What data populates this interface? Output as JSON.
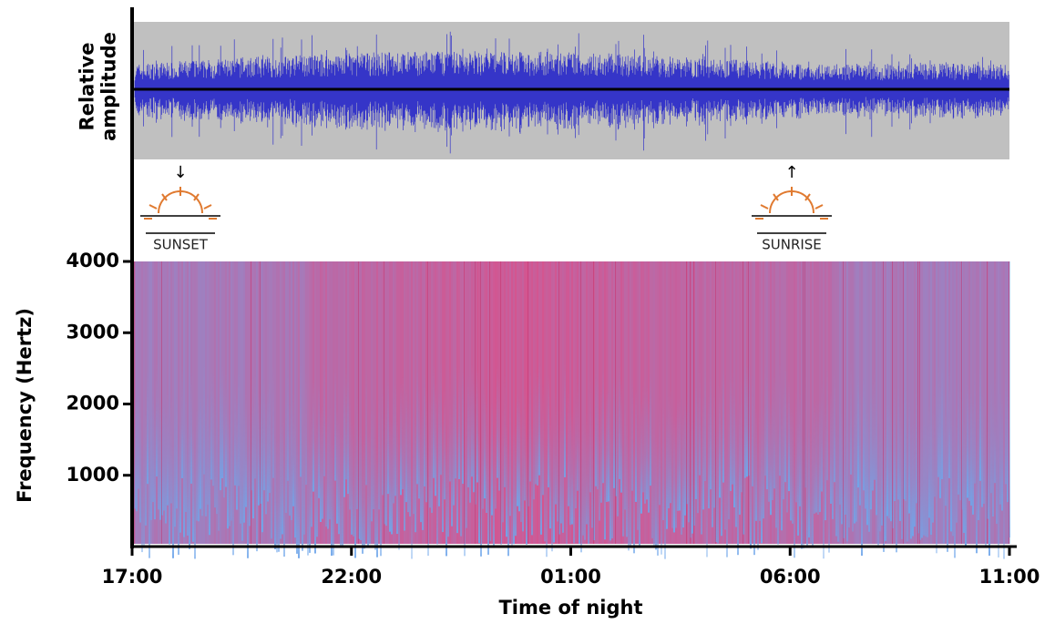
{
  "chart_data": [
    {
      "type": "waveform",
      "ylabel": "Relative amplitude",
      "color": "#3535c8",
      "background": "#c0c0c0"
    },
    {
      "type": "spectrogram",
      "ylabel": "Frequency (Hertz)",
      "xlabel": "Time of night",
      "categories": [
        "17:00",
        "22:00",
        "01:00",
        "06:00",
        "11:00"
      ],
      "ylim": [
        0,
        4000
      ],
      "yticks": [
        1000,
        2000,
        3000,
        4000
      ],
      "colors": {
        "high": "#e8457e",
        "low": "#6fa6ea"
      }
    }
  ],
  "annotations": [
    {
      "label": "SUNSET"
    },
    {
      "label": "SUNRISE"
    }
  ]
}
